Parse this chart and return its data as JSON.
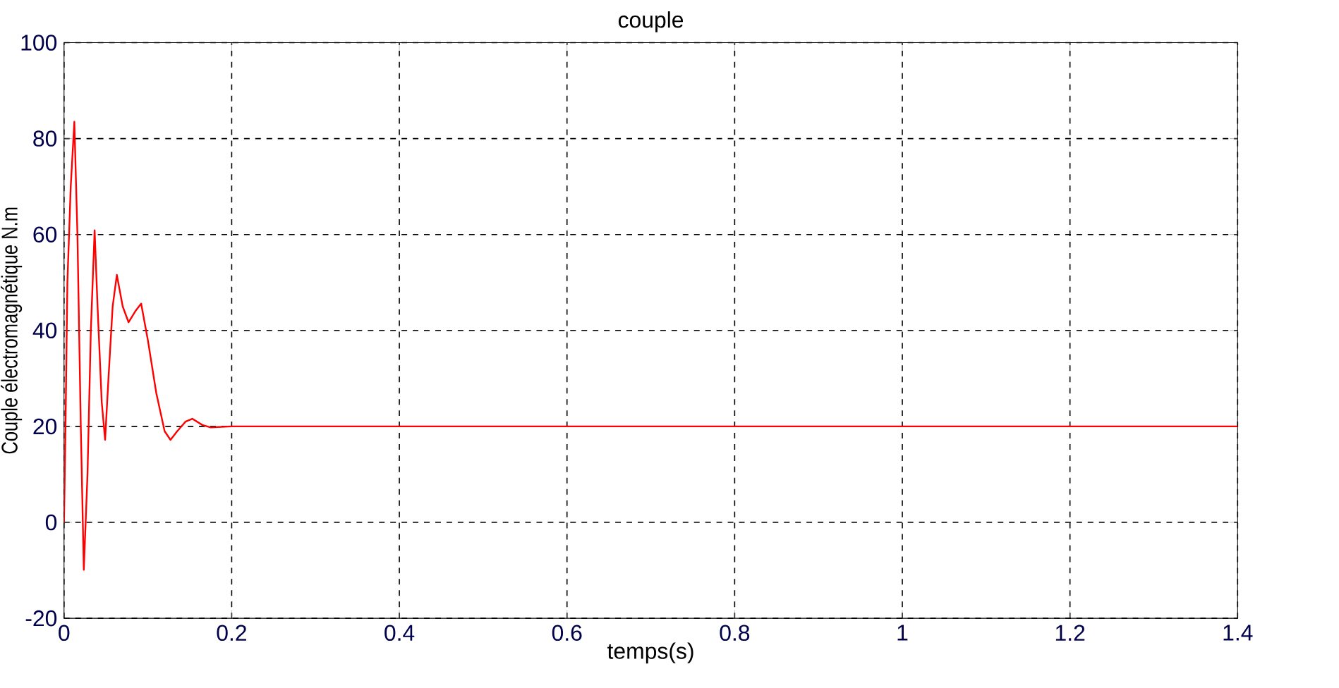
{
  "chart_data": {
    "type": "line",
    "title": "couple",
    "xlabel": "temps(s)",
    "ylabel": "Couple électromagnétique N.m",
    "x": [
      0,
      0.002,
      0.004,
      0.008,
      0.0123,
      0.016,
      0.02,
      0.0236,
      0.028,
      0.032,
      0.0365,
      0.04,
      0.045,
      0.049,
      0.053,
      0.058,
      0.063,
      0.07,
      0.077,
      0.085,
      0.092,
      0.1,
      0.11,
      0.12,
      0.127,
      0.135,
      0.145,
      0.153,
      0.165,
      0.175,
      0.2,
      0.4,
      0.6,
      0.8,
      1.0,
      1.2,
      1.4
    ],
    "series": [
      {
        "color": "#ff0000",
        "values": [
          0,
          23,
          50,
          70,
          83.5,
          60,
          20,
          -9.9,
          10,
          40,
          60.9,
          45,
          25,
          17.2,
          30,
          45,
          51.6,
          45,
          41.7,
          44,
          45.6,
          38,
          27,
          19,
          17.2,
          19,
          21,
          21.6,
          20.3,
          19.8,
          20,
          20,
          20,
          20,
          20,
          20,
          20
        ]
      }
    ],
    "xlim": [
      0,
      1.4
    ],
    "ylim": [
      -20,
      100
    ],
    "xticks": [
      0,
      0.2,
      0.4,
      0.6,
      0.8,
      1,
      1.2,
      1.4
    ],
    "yticks": [
      -20,
      0,
      20,
      40,
      60,
      80,
      100
    ],
    "grid": true,
    "line_style": "solid",
    "marker": "none"
  }
}
